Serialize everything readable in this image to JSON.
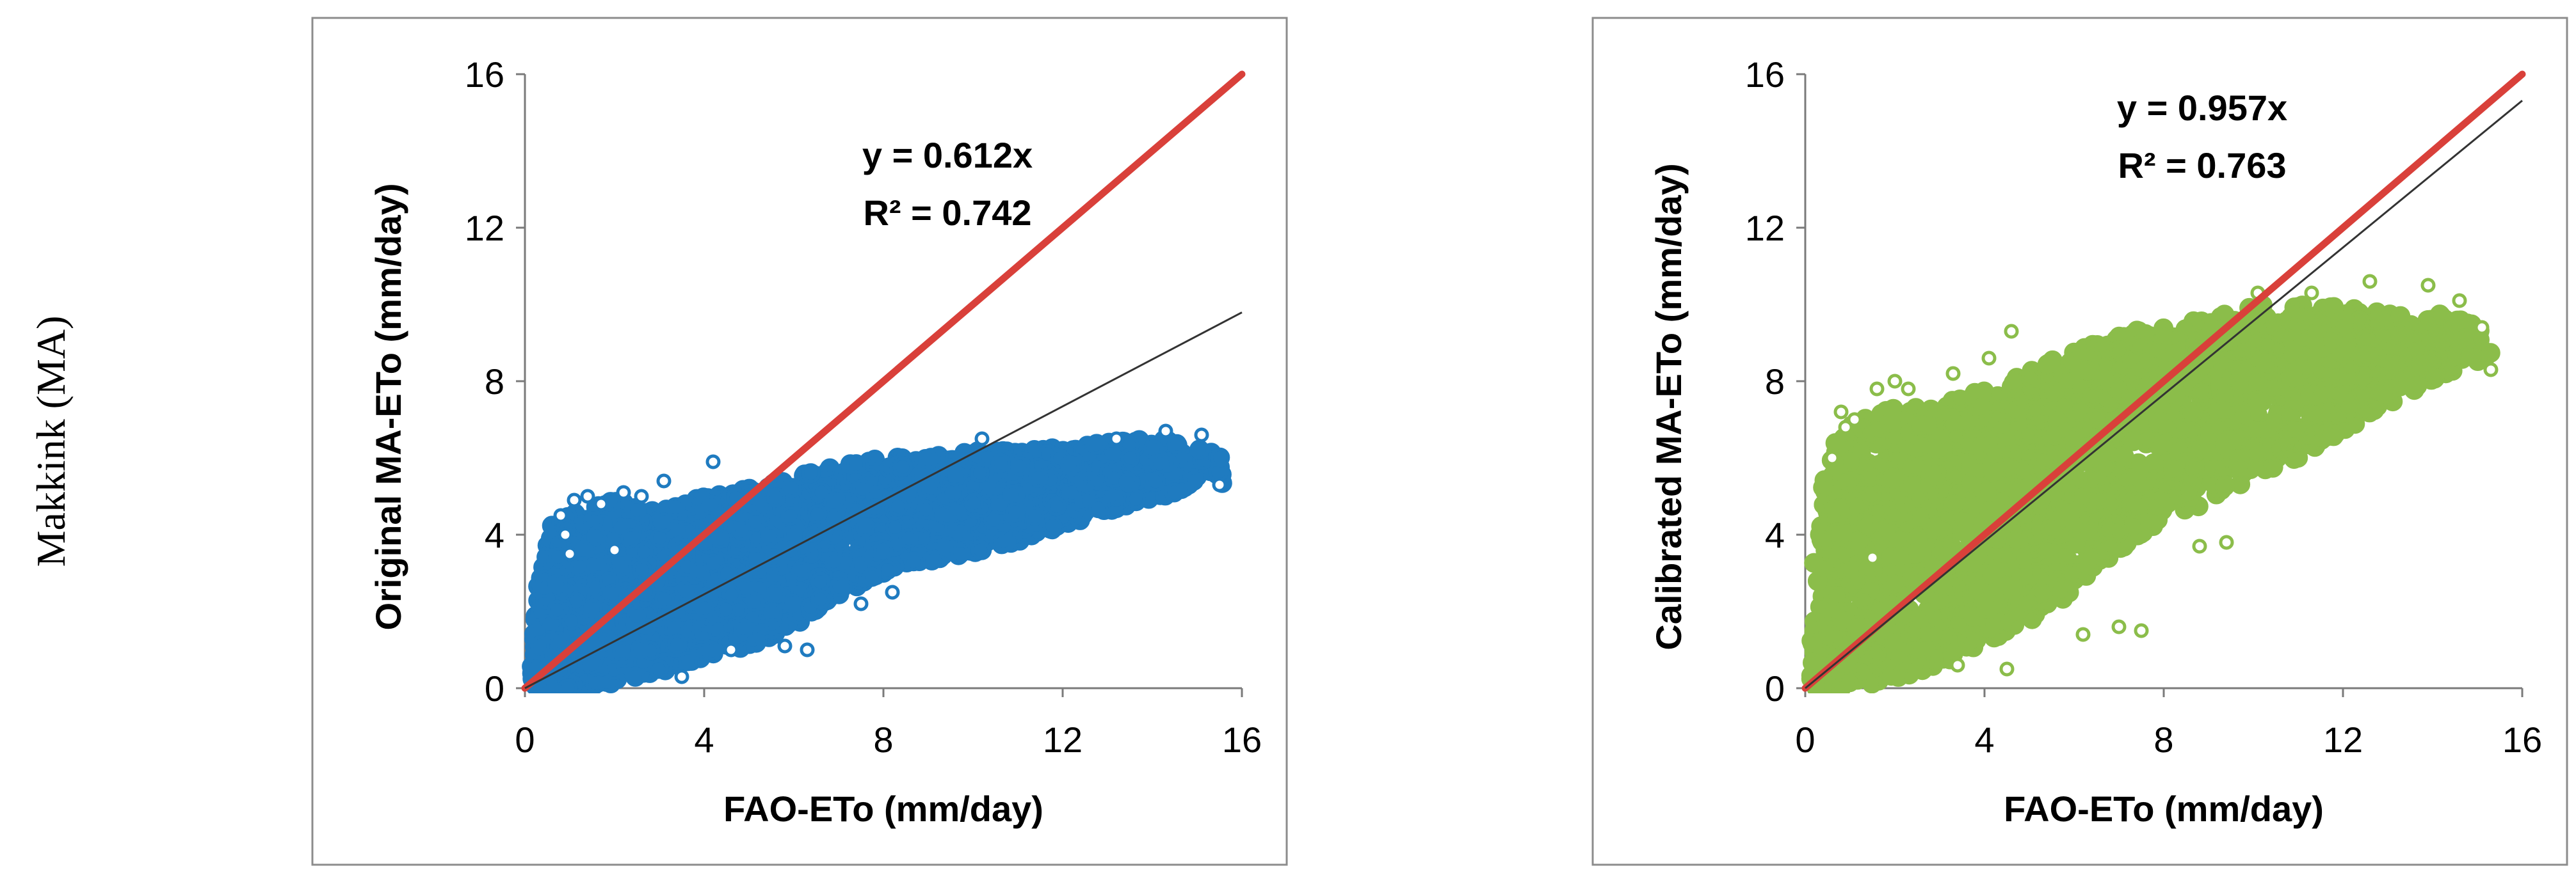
{
  "row_label": "Makkink (MA)",
  "colors": {
    "red_line": "#d9403a",
    "fit_line": "#333333",
    "blue": "#1f7bc0",
    "green": "#8bbd4a",
    "frame": "#8c8c8c"
  },
  "chart_data": [
    {
      "type": "scatter",
      "xlabel": "FAO-ETo (mm/day)",
      "ylabel": "Original MA-ETo (mm/day)",
      "xlim": [
        0,
        16
      ],
      "ylim": [
        0,
        16
      ],
      "xticks": [
        "0",
        "4",
        "8",
        "12",
        "16"
      ],
      "yticks": [
        "0",
        "4",
        "8",
        "12",
        "16"
      ],
      "color": "#1f7bc0",
      "equation": "y = 0.612x",
      "r2": "R² = 0.742",
      "slope": 0.612,
      "one_to_one_line": true,
      "fit_line_end_x": 16,
      "cloud_envelope": [
        [
          0.1,
          0
        ],
        [
          0.2,
          2.2
        ],
        [
          0.4,
          3.3
        ],
        [
          0.6,
          4.3
        ],
        [
          1.2,
          4.6
        ],
        [
          2,
          4.9
        ],
        [
          3,
          4.6
        ],
        [
          4,
          5.0
        ],
        [
          5,
          5.2
        ],
        [
          6,
          5.5
        ],
        [
          7,
          5.8
        ],
        [
          8,
          6.0
        ],
        [
          9,
          6.1
        ],
        [
          10,
          6.2
        ],
        [
          11,
          6.2
        ],
        [
          12,
          6.3
        ],
        [
          13,
          6.4
        ],
        [
          14,
          6.5
        ],
        [
          15,
          6.4
        ],
        [
          15.6,
          6.0
        ],
        [
          15.6,
          5.2
        ],
        [
          15,
          5.3
        ],
        [
          14,
          4.9
        ],
        [
          13,
          4.6
        ],
        [
          12,
          4.2
        ],
        [
          11,
          3.8
        ],
        [
          10,
          3.5
        ],
        [
          9,
          3.3
        ],
        [
          8,
          3.0
        ],
        [
          7,
          2.4
        ],
        [
          6,
          1.6
        ],
        [
          5,
          1.1
        ],
        [
          4,
          0.8
        ],
        [
          3,
          0.4
        ],
        [
          2,
          0.1
        ],
        [
          1,
          0
        ],
        [
          0.3,
          0
        ]
      ],
      "outliers": [
        [
          0.8,
          4.5
        ],
        [
          0.9,
          4.0
        ],
        [
          1.1,
          4.9
        ],
        [
          1.4,
          5.0
        ],
        [
          1.7,
          4.8
        ],
        [
          2.2,
          5.1
        ],
        [
          2.6,
          5.0
        ],
        [
          3.1,
          5.4
        ],
        [
          4.2,
          5.9
        ],
        [
          4.6,
          1.0
        ],
        [
          5.8,
          1.1
        ],
        [
          6.3,
          1.0
        ],
        [
          7.5,
          2.2
        ],
        [
          8.2,
          2.5
        ],
        [
          10.2,
          6.5
        ],
        [
          13.2,
          6.5
        ],
        [
          14.3,
          6.7
        ],
        [
          15.1,
          6.6
        ],
        [
          15.5,
          5.3
        ],
        [
          2.0,
          3.6
        ],
        [
          1.0,
          3.5
        ],
        [
          3.5,
          0.3
        ]
      ]
    },
    {
      "type": "scatter",
      "xlabel": "FAO-ETo (mm/day)",
      "ylabel": "Calibrated MA-ETo (mm/day)",
      "xlim": [
        0,
        16
      ],
      "ylim": [
        0,
        16
      ],
      "xticks": [
        "0",
        "4",
        "8",
        "12",
        "16"
      ],
      "yticks": [
        "0",
        "4",
        "8",
        "12",
        "16"
      ],
      "color": "#8bbd4a",
      "equation": "y = 0.957x",
      "r2": "R² = 0.763",
      "slope": 0.957,
      "one_to_one_line": true,
      "fit_line_end_x": 16,
      "cloud_envelope": [
        [
          0.1,
          0
        ],
        [
          0.2,
          3.5
        ],
        [
          0.4,
          5.3
        ],
        [
          0.7,
          6.6
        ],
        [
          1.2,
          7.0
        ],
        [
          2,
          7.3
        ],
        [
          3,
          7.4
        ],
        [
          4,
          7.8
        ],
        [
          5,
          8.3
        ],
        [
          6,
          8.8
        ],
        [
          7,
          9.2
        ],
        [
          8,
          9.5
        ],
        [
          9,
          9.6
        ],
        [
          10,
          10.0
        ],
        [
          11,
          10.0
        ],
        [
          12,
          10.0
        ],
        [
          13,
          9.9
        ],
        [
          14,
          9.8
        ],
        [
          15,
          9.5
        ],
        [
          15.3,
          9.2
        ],
        [
          15.3,
          8.3
        ],
        [
          15,
          8.5
        ],
        [
          14,
          8.0
        ],
        [
          13,
          7.4
        ],
        [
          12,
          6.7
        ],
        [
          11,
          6.0
        ],
        [
          10,
          5.5
        ],
        [
          9,
          4.8
        ],
        [
          8,
          4.3
        ],
        [
          7,
          3.6
        ],
        [
          6,
          2.5
        ],
        [
          5,
          1.7
        ],
        [
          4,
          1.2
        ],
        [
          3,
          0.6
        ],
        [
          2,
          0.2
        ],
        [
          1,
          0
        ],
        [
          0.3,
          0
        ]
      ],
      "outliers": [
        [
          0.8,
          7.2
        ],
        [
          0.9,
          6.8
        ],
        [
          1.1,
          7.0
        ],
        [
          1.6,
          7.8
        ],
        [
          2.3,
          7.8
        ],
        [
          2.0,
          8.0
        ],
        [
          3.3,
          8.2
        ],
        [
          4.1,
          8.6
        ],
        [
          4.6,
          9.3
        ],
        [
          6.2,
          1.4
        ],
        [
          7.0,
          1.6
        ],
        [
          7.5,
          1.5
        ],
        [
          8.8,
          3.7
        ],
        [
          9.4,
          3.8
        ],
        [
          10.1,
          10.3
        ],
        [
          11.3,
          10.3
        ],
        [
          12.6,
          10.6
        ],
        [
          13.9,
          10.5
        ],
        [
          14.6,
          10.1
        ],
        [
          15.1,
          9.4
        ],
        [
          15.3,
          8.3
        ],
        [
          1.5,
          3.4
        ],
        [
          3.4,
          0.6
        ],
        [
          4.5,
          0.5
        ],
        [
          0.6,
          6.0
        ]
      ]
    }
  ]
}
